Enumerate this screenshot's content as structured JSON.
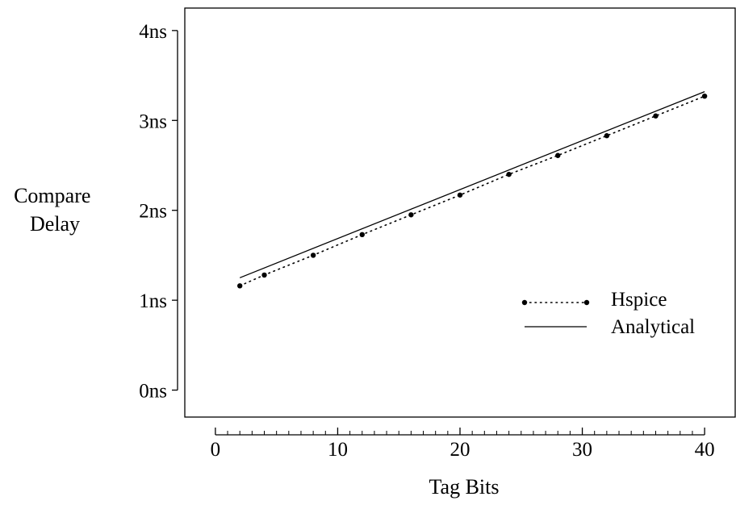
{
  "chart_data": {
    "type": "line",
    "title": "",
    "xlabel": "Tag Bits",
    "ylabel": [
      "Compare",
      "Delay"
    ],
    "xlim": [
      -2.5,
      42.5
    ],
    "ylim": [
      -0.3,
      4.25
    ],
    "x_ticks": [
      0,
      10,
      20,
      30,
      40
    ],
    "x_tick_labels": [
      "0",
      "10",
      "20",
      "30",
      "40"
    ],
    "y_ticks": [
      0,
      1,
      2,
      3,
      4
    ],
    "y_tick_labels": [
      "0ns",
      "1ns",
      "2ns",
      "3ns",
      "4ns"
    ],
    "x_minor_step": 1,
    "grid": false,
    "legend_position": "lower-right",
    "series": [
      {
        "name": "Hspice",
        "style": "dotted-markers",
        "x": [
          2,
          4,
          8,
          12,
          16,
          20,
          24,
          28,
          32,
          36,
          40
        ],
        "y": [
          1.16,
          1.28,
          1.5,
          1.73,
          1.95,
          2.17,
          2.4,
          2.61,
          2.83,
          3.05,
          3.27
        ]
      },
      {
        "name": "Analytical",
        "style": "solid",
        "x": [
          2,
          40
        ],
        "y": [
          1.25,
          3.32
        ]
      }
    ],
    "colors": {
      "axis": "#000000",
      "line": "#000000",
      "background": "#ffffff"
    }
  }
}
